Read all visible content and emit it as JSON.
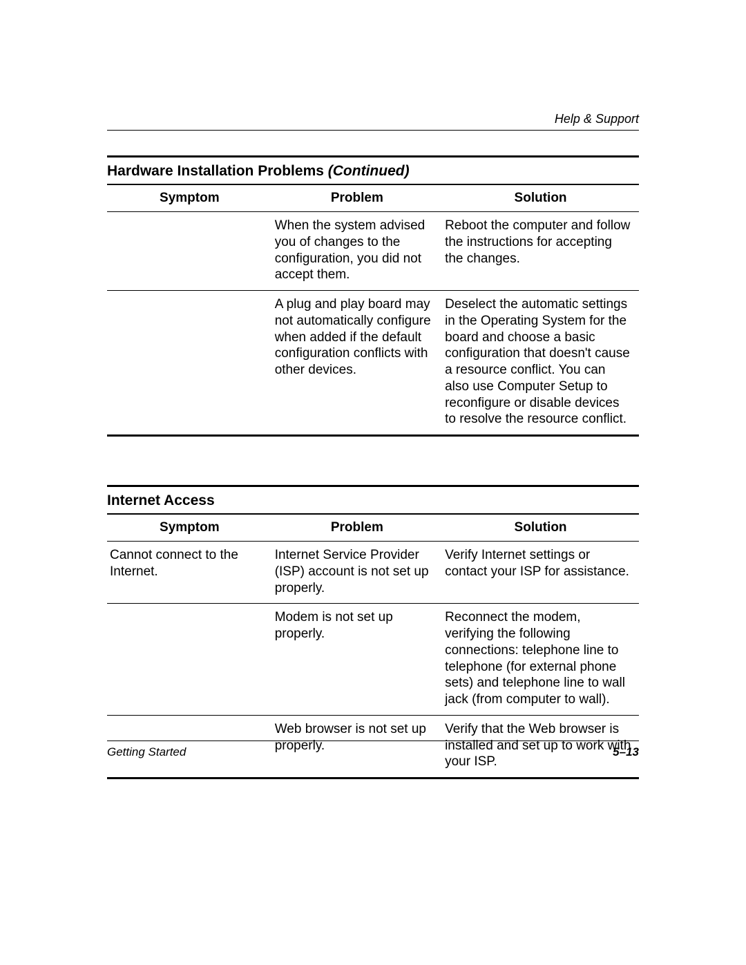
{
  "header": {
    "running_head": "Help & Support"
  },
  "sections": [
    {
      "title_main": "Hardware Installation Problems ",
      "title_cont": "(Continued)",
      "columns": [
        "Symptom",
        "Problem",
        "Solution"
      ],
      "rows": [
        {
          "symptom": "",
          "problem": "When the system advised you of changes to the configuration, you did not accept them.",
          "solution": "Reboot the computer and follow the instructions for accepting the changes."
        },
        {
          "symptom": "",
          "problem": "A plug and play board may not automatically configure when added if the default configuration conflicts with other devices.",
          "solution": "Deselect the automatic settings in the Operating System for the board and choose a basic configuration that doesn't cause a resource conflict. You can also use Computer Setup to reconfigure or disable devices to resolve the resource conflict."
        }
      ]
    },
    {
      "title_main": "Internet Access",
      "title_cont": "",
      "columns": [
        "Symptom",
        "Problem",
        "Solution"
      ],
      "rows": [
        {
          "symptom": "Cannot connect to the Internet.",
          "problem": "Internet Service Provider (ISP) account is not set up properly.",
          "solution": "Verify Internet settings or contact your ISP for assistance."
        },
        {
          "symptom": "",
          "problem": "Modem is not set up properly.",
          "solution": "Reconnect the modem, verifying the following connections: telephone line to telephone (for external phone sets) and telephone line to wall jack (from computer to wall)."
        },
        {
          "symptom": "",
          "problem": "Web browser is not set up properly.",
          "solution": "Verify that the Web browser is installed and set up to work with your ISP."
        }
      ]
    }
  ],
  "footer": {
    "left": "Getting Started",
    "right": "5–13"
  }
}
